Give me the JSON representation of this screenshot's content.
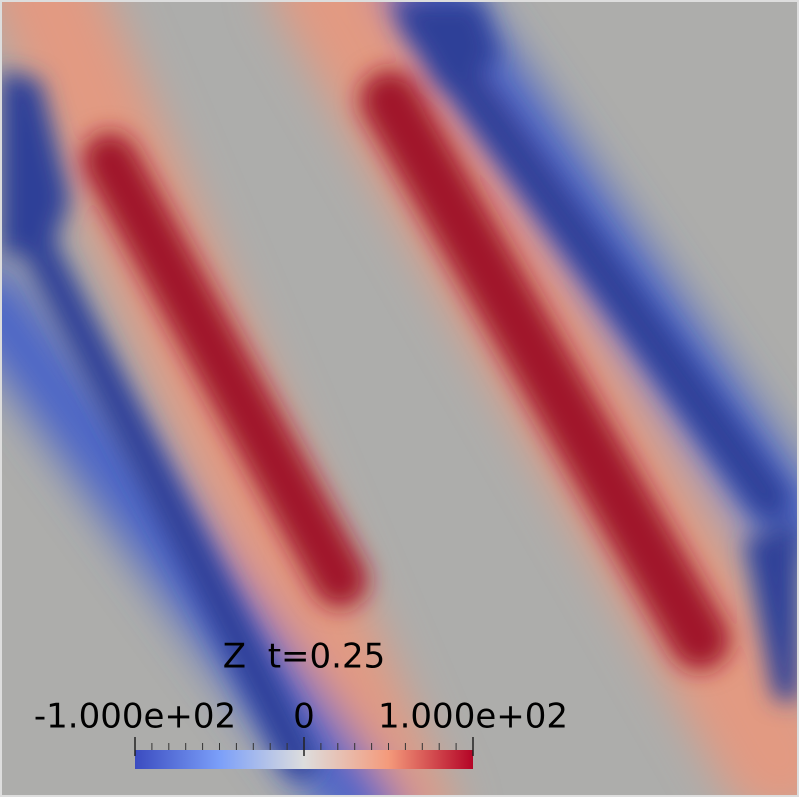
{
  "colorbar": {
    "title": "Z  t=0.25",
    "range": [
      -100,
      100
    ],
    "ticks": [
      {
        "value": -100,
        "label": "-1.000e+02"
      },
      {
        "value": 0,
        "label": "0"
      },
      {
        "value": 100,
        "label": "1.000e+02"
      }
    ]
  }
}
